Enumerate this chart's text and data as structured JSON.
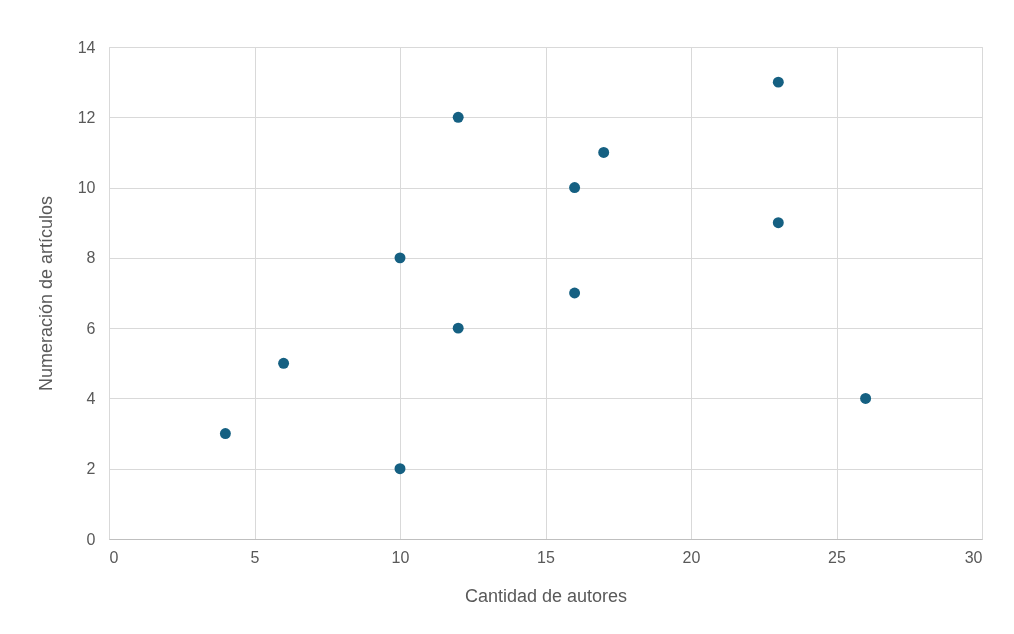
{
  "chart_data": {
    "type": "scatter",
    "xlabel": "Cantidad de autores",
    "ylabel": "Numeración de artículos",
    "x": [
      4,
      6,
      10,
      10,
      12,
      12,
      16,
      16,
      17,
      23,
      23,
      26
    ],
    "series": [
      {
        "color": "#156082",
        "values": [
          3,
          5,
          8,
          2,
          12,
          6,
          10,
          7,
          11,
          13,
          9,
          4
        ]
      }
    ],
    "xlim": [
      0,
      30
    ],
    "xticks": [
      0,
      5,
      10,
      15,
      20,
      25,
      30
    ],
    "ylim": [
      0,
      14
    ],
    "yticks": [
      0,
      2,
      4,
      6,
      8,
      10,
      12,
      14
    ],
    "grid": true,
    "marker": "circle"
  }
}
